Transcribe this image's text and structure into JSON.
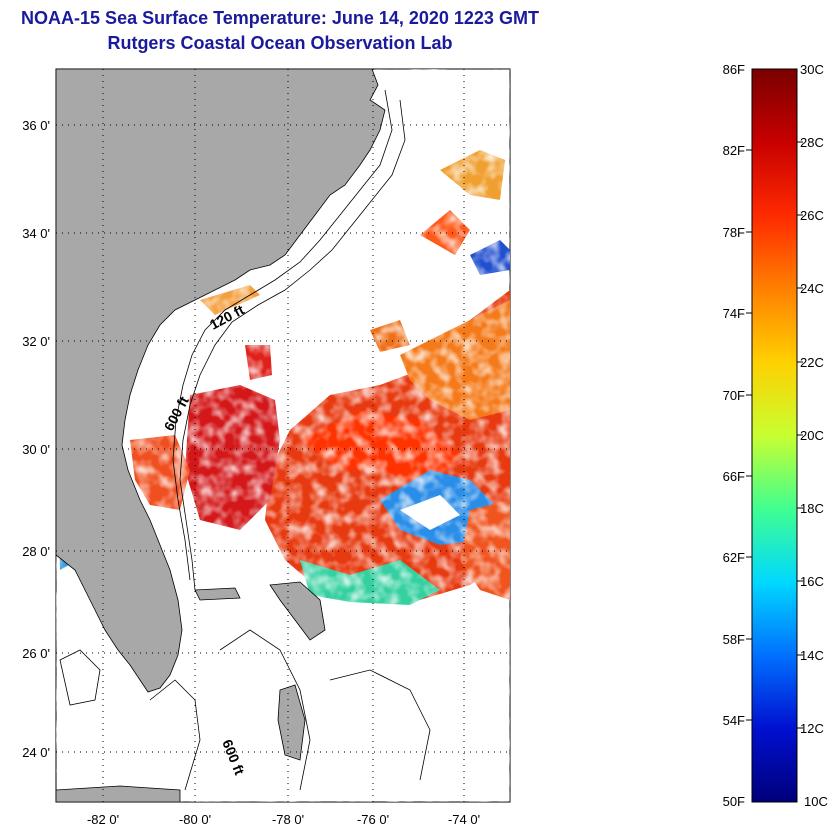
{
  "title": {
    "line1": "NOAA-15 Sea Surface Temperature:  June 14, 2020 1223 GMT",
    "line2": "Rutgers Coastal Ocean Observation Lab"
  },
  "map": {
    "lat_labels": [
      "36 0'",
      "34 0'",
      "32 0'",
      "30 0'",
      "28 0'",
      "26 0'",
      "24 0'"
    ],
    "lon_labels": [
      "-82 0'",
      "-80 0'",
      "-78 0'",
      "-76 0'",
      "-74 0'"
    ],
    "contour_labels": [
      "120 ft",
      "600 ft",
      "600 ft"
    ],
    "land_color": "#a8a8a8",
    "no_data_color": "#ffffff"
  },
  "colorbar": {
    "fahrenheit": [
      "86F",
      "82F",
      "78F",
      "74F",
      "70F",
      "66F",
      "62F",
      "58F",
      "54F",
      "50F"
    ],
    "celsius": [
      "30C",
      "28C",
      "26C",
      "24C",
      "22C",
      "20C",
      "18C",
      "16C",
      "14C",
      "12C",
      "10C"
    ],
    "colors": [
      "#7a0000",
      "#c80000",
      "#ff2a00",
      "#ff8000",
      "#ffd000",
      "#c8ff30",
      "#40ff90",
      "#00d8ff",
      "#0070ff",
      "#0010d0",
      "#00007a"
    ]
  }
}
